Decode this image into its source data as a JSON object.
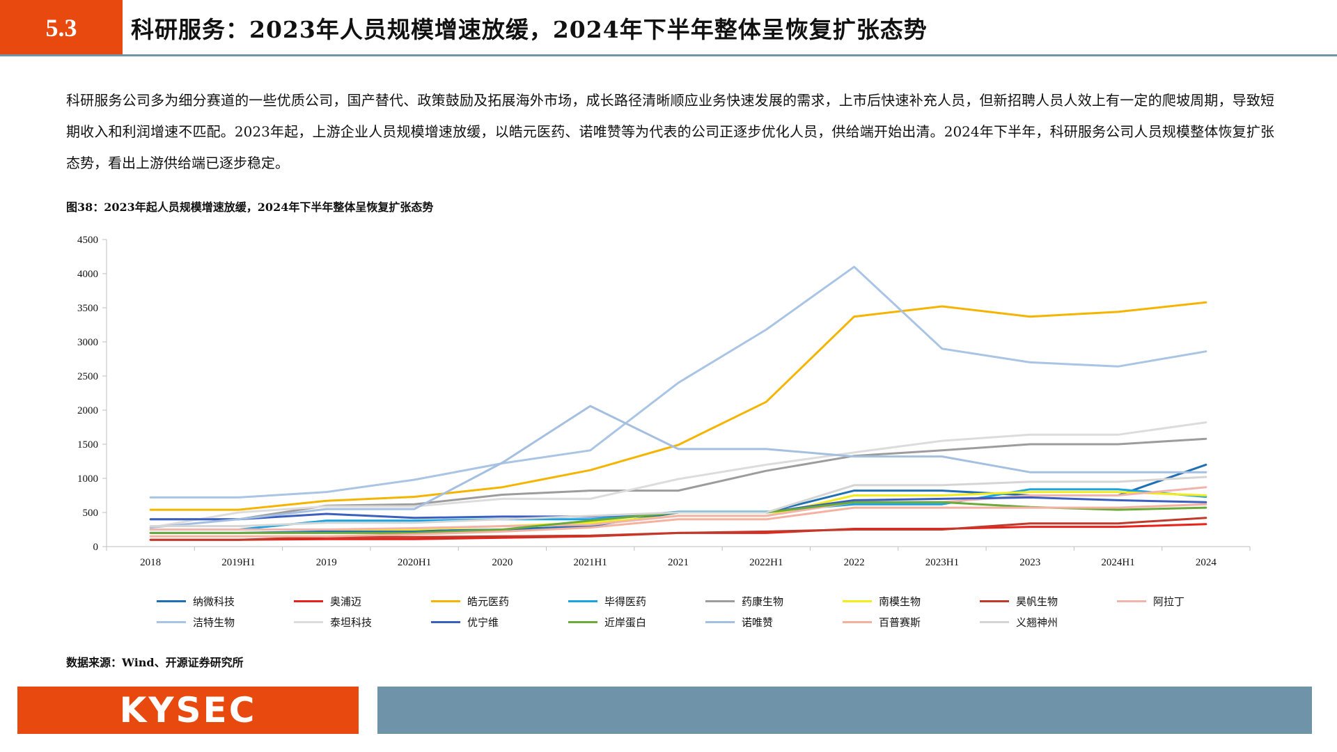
{
  "header": {
    "section_number": "5.3",
    "title": "科研服务：2023年人员规模增速放缓，2024年下半年整体呈恢复扩张态势"
  },
  "body_text": "科研服务公司多为细分赛道的一些优质公司，国产替代、政策鼓励及拓展海外市场，成长路径清晰顺应业务快速发展的需求，上市后快速补充人员，但新招聘人员人效上有一定的爬坡周期，导致短期收入和利润增速不匹配。2023年起，上游企业人员规模增速放缓，以皓元医药、诺唯赞等为代表的公司正逐步优化人员，供给端开始出清。2024年下半年，科研服务公司人员规模整体恢复扩张态势，看出上游供给端已逐步稳定。",
  "figure_title": "图38：2023年起人员规模增速放缓，2024年下半年整体呈恢复扩张态势",
  "source_note": "数据来源：Wind、开源证券研究所",
  "footer": {
    "logo_text": "KYSEC",
    "logo_color": "#e8490f",
    "bar_color": "#6f94a9"
  },
  "chart_data": {
    "type": "line",
    "categories": [
      "2018",
      "2019H1",
      "2019",
      "2020H1",
      "2020",
      "2021H1",
      "2021",
      "2022H1",
      "2022",
      "2023H1",
      "2023",
      "2024H1",
      "2024"
    ],
    "ylim": [
      0,
      4500
    ],
    "yticks": [
      "0",
      "500",
      "1000",
      "1500",
      "2000",
      "2500",
      "3000",
      "3500",
      "4000",
      "4500"
    ],
    "legend_position": "bottom",
    "series": [
      {
        "name": "纳微科技",
        "color": "#1f6fb5",
        "values": [
          200,
          200,
          220,
          230,
          250,
          300,
          500,
          500,
          820,
          820,
          750,
          750,
          1200
        ]
      },
      {
        "name": "奥浦迈",
        "color": "#e8221a",
        "values": [
          100,
          100,
          110,
          110,
          130,
          150,
          200,
          200,
          260,
          260,
          290,
          290,
          330
        ]
      },
      {
        "name": "皓元医药",
        "color": "#f5b400",
        "values": [
          540,
          540,
          670,
          730,
          870,
          1120,
          1490,
          2120,
          3370,
          3520,
          3370,
          3440,
          3580
        ]
      },
      {
        "name": "毕得医药",
        "color": "#19a3e0",
        "values": [
          250,
          250,
          380,
          380,
          400,
          400,
          510,
          510,
          620,
          620,
          840,
          840,
          730
        ]
      },
      {
        "name": "药康生物",
        "color": "#9c9c9c",
        "values": [
          400,
          400,
          600,
          620,
          760,
          820,
          820,
          1110,
          1330,
          1410,
          1500,
          1500,
          1580
        ]
      },
      {
        "name": "南模生物",
        "color": "#f2ec1d",
        "values": [
          250,
          250,
          250,
          250,
          300,
          350,
          450,
          450,
          750,
          750,
          800,
          800,
          750
        ]
      },
      {
        "name": "昊帆生物",
        "color": "#c0392b",
        "values": [
          100,
          100,
          140,
          140,
          150,
          160,
          200,
          220,
          250,
          250,
          340,
          340,
          420
        ]
      },
      {
        "name": "阿拉丁",
        "color": "#f2b3ab",
        "values": [
          250,
          250,
          250,
          270,
          300,
          320,
          450,
          450,
          650,
          650,
          750,
          750,
          870
        ]
      },
      {
        "name": "洁特生物",
        "color": "#a9c4e4",
        "values": [
          720,
          720,
          800,
          980,
          1220,
          1410,
          2400,
          3180,
          4100,
          2900,
          2700,
          2640,
          2860
        ]
      },
      {
        "name": "泰坦科技",
        "color": "#dcdcdc",
        "values": [
          280,
          500,
          590,
          590,
          700,
          700,
          990,
          1200,
          1380,
          1550,
          1640,
          1640,
          1820
        ]
      },
      {
        "name": "优宁维",
        "color": "#3a5fbf",
        "values": [
          400,
          400,
          480,
          420,
          440,
          440,
          500,
          500,
          680,
          700,
          720,
          680,
          650
        ]
      },
      {
        "name": "近岸蛋白",
        "color": "#6aaa3a",
        "values": [
          200,
          200,
          200,
          200,
          250,
          380,
          500,
          500,
          650,
          650,
          580,
          540,
          570
        ]
      },
      {
        "name": "诺唯赞",
        "color": "#a5bfe0",
        "values": [
          280,
          400,
          550,
          550,
          1230,
          2060,
          1430,
          1430,
          1320,
          1320,
          1090,
          1090,
          1090
        ]
      },
      {
        "name": "百普赛斯",
        "color": "#f4b1a0",
        "values": [
          150,
          150,
          150,
          180,
          220,
          280,
          400,
          400,
          570,
          570,
          570,
          570,
          620
        ]
      },
      {
        "name": "义翘神州",
        "color": "#d5d5d5",
        "values": [
          300,
          300,
          350,
          350,
          400,
          450,
          500,
          500,
          900,
          900,
          950,
          950,
          1020
        ]
      }
    ]
  }
}
